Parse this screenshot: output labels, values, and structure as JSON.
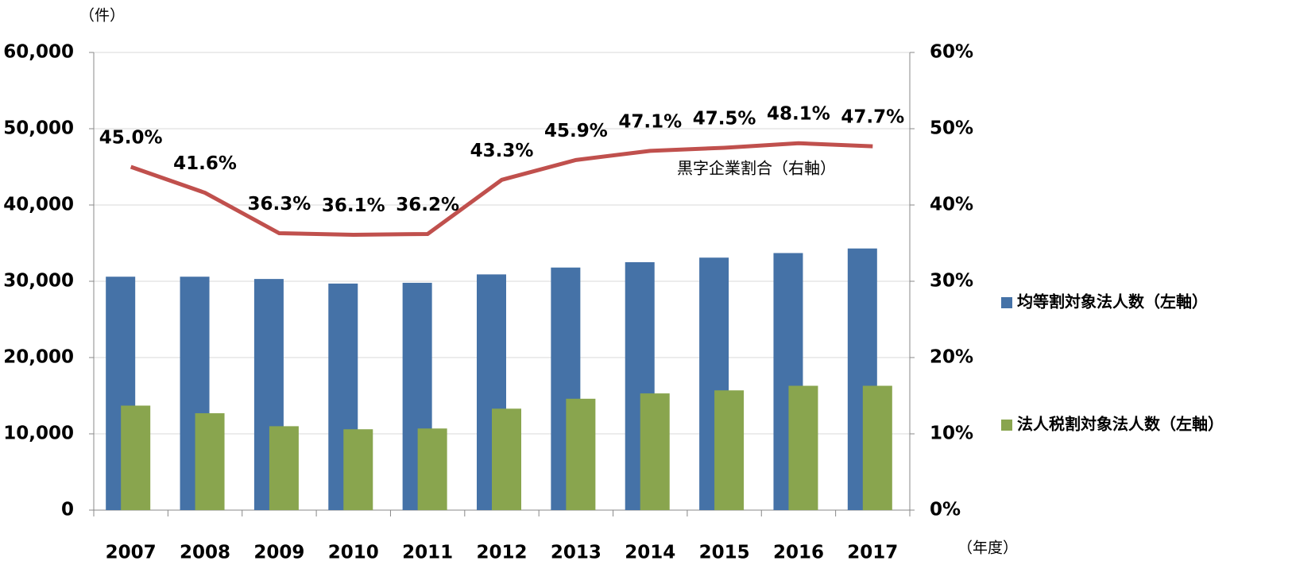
{
  "chart_data": {
    "type": "bar_line",
    "ylabel": "（件）",
    "xlabel": "（年度）",
    "categories": [
      "2007",
      "2008",
      "2009",
      "2010",
      "2011",
      "2012",
      "2013",
      "2014",
      "2015",
      "2016",
      "2017"
    ],
    "series": [
      {
        "name": "均等割対象法人数（左軸）",
        "type": "bar",
        "color": "#4572a7",
        "values": [
          30600,
          30600,
          30300,
          29700,
          29800,
          30900,
          31800,
          32500,
          33100,
          33700,
          34300
        ]
      },
      {
        "name": "法人税割対象法人数（左軸）",
        "type": "bar",
        "color": "#89a54e",
        "values": [
          13700,
          12700,
          11000,
          10600,
          10700,
          13300,
          14600,
          15300,
          15700,
          16300,
          16300
        ]
      },
      {
        "name": "黒字企業割合（右軸）",
        "type": "line",
        "axis": "y2",
        "color": "#c0504d",
        "values": [
          45.0,
          41.6,
          36.3,
          36.1,
          36.2,
          43.3,
          45.9,
          47.1,
          47.5,
          48.1,
          47.7
        ],
        "value_labels": [
          "45.0%",
          "41.6%",
          "36.3%",
          "36.1%",
          "36.2%",
          "43.3%",
          "45.9%",
          "47.1%",
          "47.5%",
          "48.1%",
          "47.7%"
        ]
      }
    ],
    "ylim": [
      0,
      60000
    ],
    "yticks": [
      0,
      {
        "value": 10000,
        "label": "10,000"
      },
      {
        "value": 20000,
        "label": "20,000"
      },
      {
        "value": 30000,
        "label": "30,000"
      },
      {
        "value": 40000,
        "label": "40,000"
      },
      {
        "value": 50000,
        "label": "50,000"
      },
      {
        "value": 60000,
        "label": "60,000"
      }
    ],
    "y2lim": [
      0,
      60
    ],
    "y2ticks": [
      {
        "value": 0,
        "label": "0%"
      },
      {
        "value": 10,
        "label": "10%"
      },
      {
        "value": 20,
        "label": "20%"
      },
      {
        "value": 30,
        "label": "30%"
      },
      {
        "value": 40,
        "label": "40%"
      },
      {
        "value": 50,
        "label": "50%"
      },
      {
        "value": 60,
        "label": "60%"
      }
    ],
    "grid": true,
    "legend": "right"
  }
}
